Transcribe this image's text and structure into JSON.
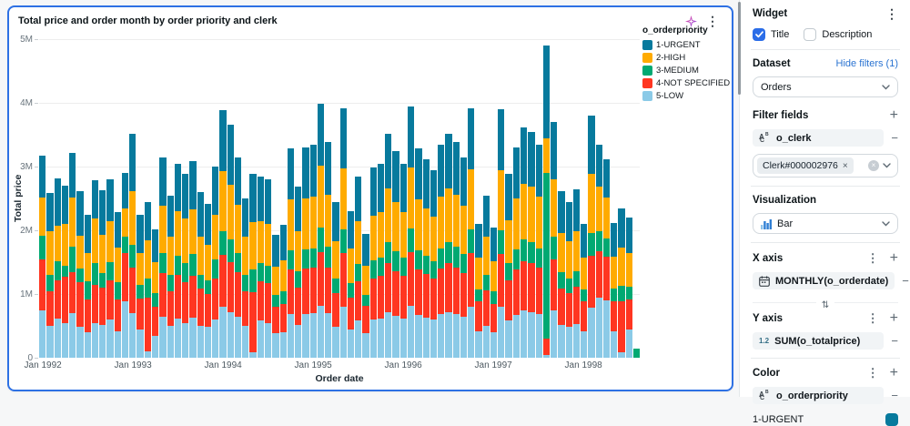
{
  "accent": {
    "card_border": "#2e71e4",
    "checkbox": "#2b6de8",
    "link": "#2b74d2"
  },
  "chart_widget": {
    "title": "Total price and order month by order priority and clerk",
    "legend_title": "o_orderpriority"
  },
  "chart_data": {
    "type": "bar",
    "stacked": true,
    "title": "Total price and order month by order priority and clerk",
    "xlabel": "Order date",
    "ylabel": "Total price",
    "values_unit": "millions",
    "ylim": [
      0,
      5
    ],
    "y_ticks": [
      "0",
      "1M",
      "2M",
      "3M",
      "4M",
      "5M"
    ],
    "x_tick_labels": [
      "Jan 1992",
      "Jan 1993",
      "Jan 1994",
      "Jan 1995",
      "Jan 1996",
      "Jan 1997",
      "Jan 1998"
    ],
    "x_tick_indices": [
      0,
      12,
      24,
      36,
      48,
      60,
      72
    ],
    "legend_position": "top-right",
    "grid": true,
    "categories": [
      "Jan 1992",
      "Feb 1992",
      "Mar 1992",
      "Apr 1992",
      "May 1992",
      "Jun 1992",
      "Jul 1992",
      "Aug 1992",
      "Sep 1992",
      "Oct 1992",
      "Nov 1992",
      "Dec 1992",
      "Jan 1993",
      "Feb 1993",
      "Mar 1993",
      "Apr 1993",
      "May 1993",
      "Jun 1993",
      "Jul 1993",
      "Aug 1993",
      "Sep 1993",
      "Oct 1993",
      "Nov 1993",
      "Dec 1993",
      "Jan 1994",
      "Feb 1994",
      "Mar 1994",
      "Apr 1994",
      "May 1994",
      "Jun 1994",
      "Jul 1994",
      "Aug 1994",
      "Sep 1994",
      "Oct 1994",
      "Nov 1994",
      "Dec 1994",
      "Jan 1995",
      "Feb 1995",
      "Mar 1995",
      "Apr 1995",
      "May 1995",
      "Jun 1995",
      "Jul 1995",
      "Aug 1995",
      "Sep 1995",
      "Oct 1995",
      "Nov 1995",
      "Dec 1995",
      "Jan 1996",
      "Feb 1996",
      "Mar 1996",
      "Apr 1996",
      "May 1996",
      "Jun 1996",
      "Jul 1996",
      "Aug 1996",
      "Sep 1996",
      "Oct 1996",
      "Nov 1996",
      "Dec 1996",
      "Jan 1997",
      "Feb 1997",
      "Mar 1997",
      "Apr 1997",
      "May 1997",
      "Jun 1997",
      "Jul 1997",
      "Aug 1997",
      "Sep 1997",
      "Oct 1997",
      "Nov 1997",
      "Dec 1997",
      "Jan 1998",
      "Feb 1998",
      "Mar 1998",
      "Apr 1998",
      "May 1998",
      "Jun 1998",
      "Jul 1998",
      "Aug 1998"
    ],
    "series": [
      {
        "name": "1-URGENT",
        "color": "#077A9D",
        "values": [
          0.65,
          0.6,
          0.75,
          0.6,
          0.7,
          0.7,
          0.6,
          0.6,
          0.7,
          0.65,
          0.55,
          0.55,
          0.9,
          0.6,
          0.6,
          0.52,
          0.75,
          0.65,
          0.75,
          0.7,
          0.75,
          0.7,
          0.65,
          0.75,
          0.95,
          0.95,
          0.75,
          0.6,
          0.75,
          0.7,
          0.7,
          0.5,
          0.55,
          0.8,
          0.7,
          0.8,
          0.82,
          0.97,
          0.82,
          0.62,
          0.95,
          0.58,
          0.7,
          0.5,
          0.75,
          0.76,
          0.86,
          0.8,
          0.76,
          0.97,
          0.8,
          0.77,
          0.74,
          0.82,
          0.86,
          0.82,
          0.76,
          0.95,
          0.53,
          0.65,
          0.53,
          0.95,
          0.72,
          0.8,
          0.89,
          0.87,
          0.82,
          1.45,
          0.9,
          0.66,
          0.62,
          0.66,
          0.53,
          0.92,
          0.67,
          0.6,
          0.54,
          0.62,
          0.56,
          0.0
        ]
      },
      {
        "name": "2-HIGH",
        "color": "#FFAB00",
        "values": [
          0.6,
          0.68,
          0.55,
          0.65,
          0.77,
          0.52,
          0.45,
          0.7,
          0.6,
          0.65,
          0.55,
          0.45,
          0.85,
          0.5,
          0.6,
          0.48,
          0.75,
          0.6,
          0.7,
          0.7,
          0.7,
          0.6,
          0.55,
          0.7,
          0.95,
          0.85,
          0.75,
          0.6,
          0.75,
          0.67,
          0.65,
          0.45,
          0.48,
          0.8,
          0.62,
          0.8,
          0.81,
          0.97,
          0.82,
          0.58,
          0.95,
          0.55,
          0.68,
          0.46,
          0.7,
          0.72,
          0.85,
          0.78,
          0.72,
          0.95,
          0.79,
          0.75,
          0.7,
          0.81,
          0.85,
          0.82,
          0.76,
          0.95,
          0.5,
          0.6,
          0.48,
          0.95,
          0.68,
          0.8,
          0.87,
          0.86,
          0.81,
          0.55,
          0.9,
          0.62,
          0.58,
          0.63,
          0.5,
          0.92,
          0.7,
          0.65,
          0.5,
          0.6,
          0.52,
          0.0
        ]
      },
      {
        "name": "3-MEDIUM",
        "color": "#00A972",
        "values": [
          0.37,
          0.25,
          0.3,
          0.18,
          0.4,
          0.22,
          0.28,
          0.33,
          0.23,
          0.28,
          0.26,
          0.25,
          0.35,
          0.22,
          0.3,
          0.22,
          0.31,
          0.25,
          0.3,
          0.3,
          0.35,
          0.22,
          0.22,
          0.3,
          0.36,
          0.36,
          0.3,
          0.25,
          0.35,
          0.28,
          0.28,
          0.18,
          0.2,
          0.3,
          0.26,
          0.3,
          0.3,
          0.38,
          0.32,
          0.23,
          0.38,
          0.22,
          0.27,
          0.18,
          0.28,
          0.29,
          0.33,
          0.31,
          0.29,
          0.37,
          0.31,
          0.29,
          0.27,
          0.32,
          0.33,
          0.32,
          0.3,
          0.37,
          0.19,
          0.24,
          0.19,
          0.37,
          0.27,
          0.31,
          0.34,
          0.33,
          0.31,
          2.6,
          0.35,
          0.25,
          0.23,
          0.25,
          0.19,
          0.36,
          0.31,
          0.29,
          0.19,
          0.25,
          0.2,
          0.15
        ]
      },
      {
        "name": "4-NOT SPECIFIED",
        "color": "#FF3621",
        "values": [
          0.8,
          0.55,
          0.6,
          0.72,
          0.65,
          0.7,
          0.52,
          0.6,
          0.58,
          0.62,
          0.5,
          0.77,
          0.72,
          0.48,
          0.85,
          0.45,
          0.68,
          0.55,
          0.68,
          0.63,
          0.65,
          0.58,
          0.52,
          0.65,
          0.82,
          0.78,
          0.7,
          0.55,
          0.95,
          0.62,
          0.62,
          0.42,
          0.45,
          0.7,
          0.58,
          0.72,
          0.72,
          0.84,
          0.72,
          0.54,
          0.84,
          0.5,
          0.62,
          0.43,
          0.65,
          0.66,
          0.76,
          0.7,
          0.66,
          0.84,
          0.71,
          0.68,
          0.64,
          0.72,
          0.76,
          0.73,
          0.69,
          0.84,
          0.46,
          0.56,
          0.45,
          0.83,
          0.63,
          0.72,
          0.78,
          0.77,
          0.73,
          0.25,
          0.8,
          0.57,
          0.54,
          0.58,
          0.46,
          0.82,
          0.72,
          0.68,
          0.47,
          0.8,
          0.48,
          0.0
        ]
      },
      {
        "name": "5-LOW",
        "color": "#8BCAE7",
        "values": [
          0.75,
          0.5,
          0.62,
          0.55,
          0.7,
          0.48,
          0.4,
          0.55,
          0.52,
          0.6,
          0.42,
          0.88,
          0.7,
          0.45,
          0.1,
          0.35,
          0.65,
          0.5,
          0.62,
          0.55,
          0.63,
          0.5,
          0.48,
          0.6,
          0.8,
          0.72,
          0.65,
          0.5,
          0.08,
          0.58,
          0.55,
          0.38,
          0.4,
          0.68,
          0.52,
          0.68,
          0.7,
          0.82,
          0.7,
          0.48,
          0.8,
          0.45,
          0.58,
          0.38,
          0.6,
          0.62,
          0.72,
          0.66,
          0.62,
          0.82,
          0.67,
          0.63,
          0.6,
          0.68,
          0.72,
          0.69,
          0.64,
          0.8,
          0.42,
          0.5,
          0.4,
          0.8,
          0.58,
          0.67,
          0.74,
          0.72,
          0.68,
          0.05,
          0.75,
          0.52,
          0.48,
          0.53,
          0.42,
          0.78,
          0.95,
          0.9,
          0.42,
          0.08,
          0.44,
          0.0
        ]
      }
    ]
  },
  "panel": {
    "header": {
      "title": "Widget"
    },
    "toggles": {
      "title_label": "Title",
      "title_checked": true,
      "description_label": "Description",
      "description_checked": false
    },
    "dataset": {
      "label": "Dataset",
      "link": "Hide filters (1)",
      "selected": "Orders"
    },
    "filter_fields": {
      "label": "Filter fields",
      "field": "o_clerk",
      "chip": "Clerk#000002976"
    },
    "visualization": {
      "label": "Visualization",
      "selected": "Bar"
    },
    "x_axis": {
      "label": "X axis",
      "field": "MONTHLY(o_orderdate)"
    },
    "y_axis": {
      "label": "Y axis",
      "field": "SUM(o_totalprice)"
    },
    "color": {
      "label": "Color",
      "field": "o_orderpriority",
      "first_value": "1-URGENT",
      "first_swatch": "#077A9D"
    }
  },
  "icons": {
    "kebab": "⋮",
    "plus": "+",
    "minus": "−",
    "swap": "⇅",
    "chip_close": "×",
    "clear": "×",
    "field_string_a": "A",
    "field_string_b": "B",
    "field_string_c": "C",
    "field_numeric": "1.2"
  }
}
